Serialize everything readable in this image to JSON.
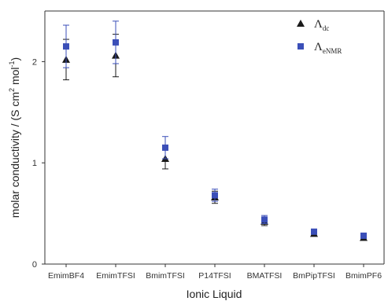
{
  "chart_data": {
    "type": "scatter",
    "categories": [
      "EmimBF4",
      "EmimTFSI",
      "BmimTFSI",
      "P14TFSI",
      "BMATFSI",
      "BmPipTFSI",
      "BmimPF6"
    ],
    "series": [
      {
        "name_main": "Λ",
        "name_sub": "dc",
        "marker": "triangle",
        "color": "#1a1a1a",
        "values": [
          2.02,
          2.06,
          1.04,
          0.66,
          0.42,
          0.3,
          0.26
        ],
        "error": [
          0.2,
          0.21,
          0.1,
          0.06,
          0.04,
          0.02,
          0.02
        ]
      },
      {
        "name_main": "Λ",
        "name_sub": "eNMR",
        "marker": "square",
        "color": "#3b4fb8",
        "values": [
          2.15,
          2.19,
          1.15,
          0.68,
          0.44,
          0.32,
          0.28
        ],
        "error": [
          0.21,
          0.21,
          0.11,
          0.06,
          0.04,
          0.02,
          0.02
        ]
      }
    ],
    "xlabel": "Ionic Liquid",
    "ylabel_main": "molar conductivity / (S cm",
    "ylabel_sup1": "2",
    "ylabel_mid": " mol",
    "ylabel_sup2": "-1",
    "ylabel_end": ")",
    "yticks": [
      0,
      1,
      2
    ],
    "ylim": [
      0,
      2.5
    ],
    "grid": false,
    "legend_position": "top-right"
  }
}
